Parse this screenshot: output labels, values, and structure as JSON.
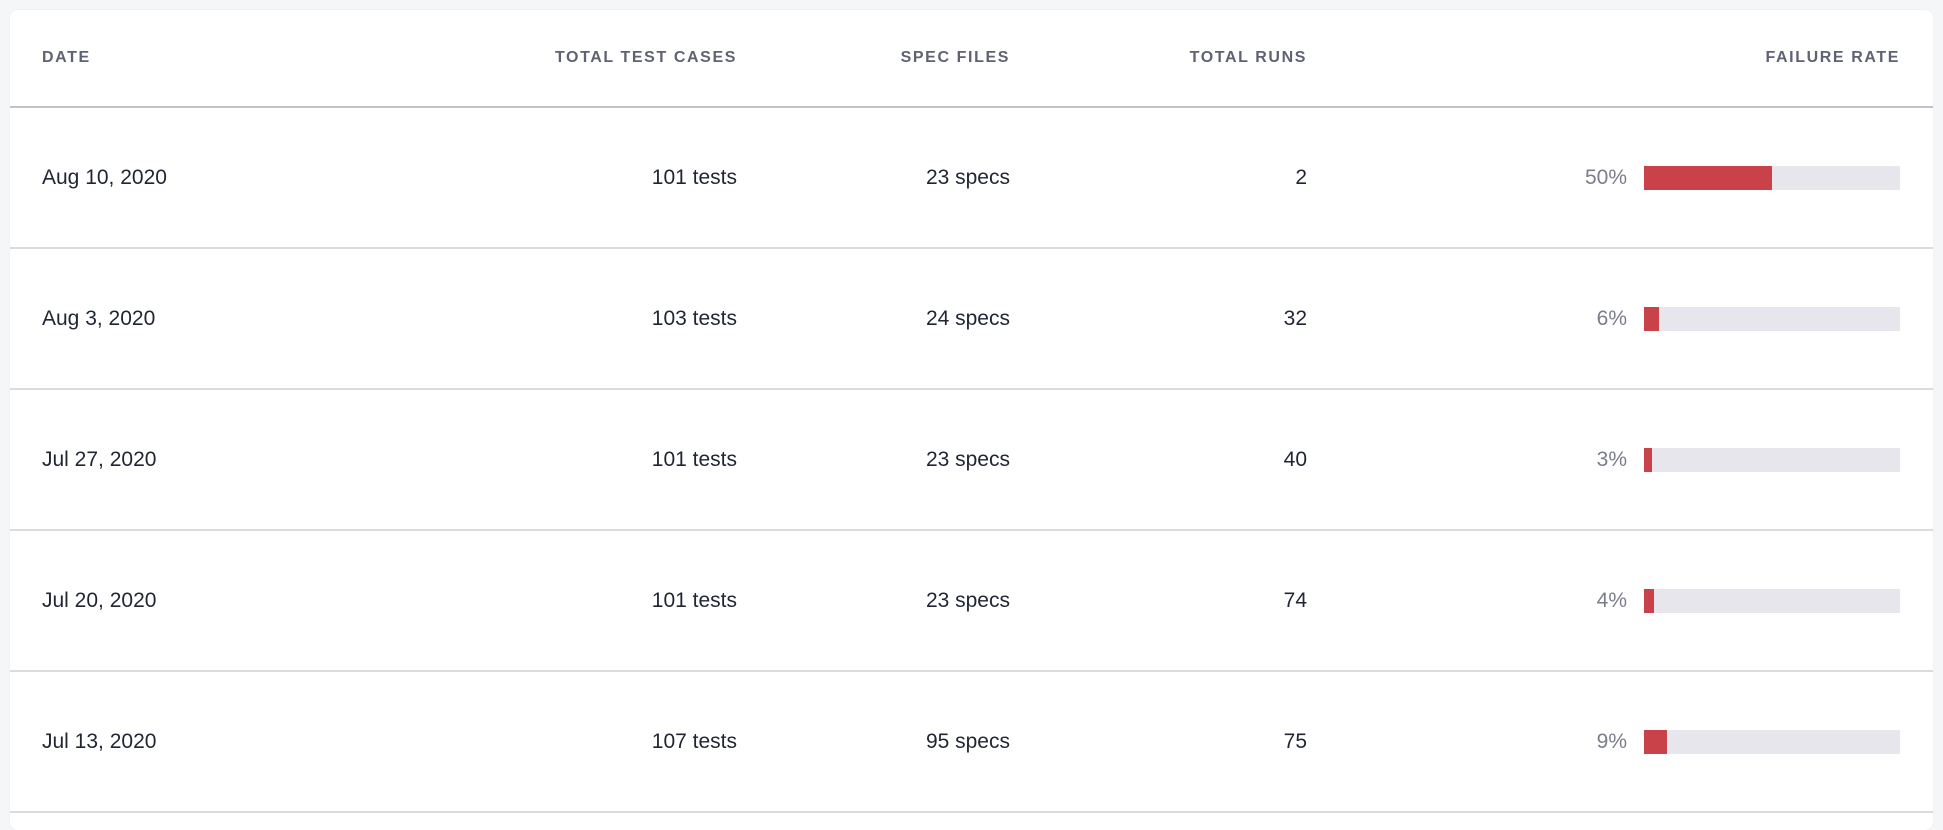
{
  "table": {
    "columns": [
      "DATE",
      "TOTAL TEST CASES",
      "SPEC FILES",
      "TOTAL RUNS",
      "FAILURE RATE"
    ],
    "rows": [
      {
        "date": "Aug 10, 2020",
        "tests": "101 tests",
        "specs": "23 specs",
        "runs": "2",
        "failure_label": "50%",
        "failure_rate": 50
      },
      {
        "date": "Aug 3, 2020",
        "tests": "103 tests",
        "specs": "24 specs",
        "runs": "32",
        "failure_label": "6%",
        "failure_rate": 6
      },
      {
        "date": "Jul 27, 2020",
        "tests": "101 tests",
        "specs": "23 specs",
        "runs": "40",
        "failure_label": "3%",
        "failure_rate": 3
      },
      {
        "date": "Jul 20, 2020",
        "tests": "101 tests",
        "specs": "23 specs",
        "runs": "74",
        "failure_label": "4%",
        "failure_rate": 4
      },
      {
        "date": "Jul 13, 2020",
        "tests": "107 tests",
        "specs": "95 specs",
        "runs": "75",
        "failure_label": "9%",
        "failure_rate": 9
      }
    ]
  },
  "colors": {
    "failure_fill": "#c9424a",
    "bar_track": "#e6e6ec"
  }
}
